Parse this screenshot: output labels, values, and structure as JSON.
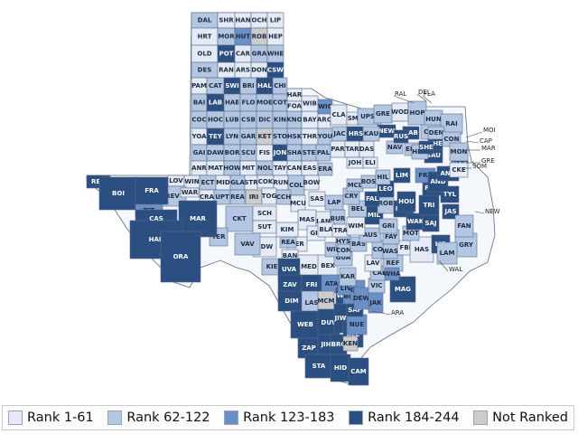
{
  "map": {
    "colors": {
      "rank_1_61": "#e4ebf6",
      "rank_62_122": "#b3c7e3",
      "rank_123_183": "#6b8fc7",
      "rank_184_244": "#2b4f80",
      "not_ranked": "#cccccc"
    },
    "label_colors": {
      "light": "#1e2b40",
      "dark": "#ffffff"
    },
    "counties": [
      {
        "abbr": "DAL",
        "tier": "rank_62_122"
      },
      {
        "abbr": "SHR",
        "tier": "rank_1_61"
      },
      {
        "abbr": "HAN",
        "tier": "rank_1_61"
      },
      {
        "abbr": "OCH",
        "tier": "rank_1_61"
      },
      {
        "abbr": "LIP",
        "tier": "rank_1_61"
      },
      {
        "abbr": "HRT",
        "tier": "rank_1_61"
      },
      {
        "abbr": "MOR",
        "tier": "rank_62_122"
      },
      {
        "abbr": "HUT",
        "tier": "rank_123_183"
      },
      {
        "abbr": "ROB",
        "tier": "not_ranked"
      },
      {
        "abbr": "HEP",
        "tier": "rank_1_61"
      },
      {
        "abbr": "OLD",
        "tier": "rank_1_61"
      },
      {
        "abbr": "POT",
        "tier": "rank_184_244"
      },
      {
        "abbr": "CAR",
        "tier": "rank_1_61"
      },
      {
        "abbr": "GRA",
        "tier": "rank_62_122"
      },
      {
        "abbr": "WHE",
        "tier": "rank_62_122"
      },
      {
        "abbr": "DES",
        "tier": "rank_62_122"
      },
      {
        "abbr": "RAN",
        "tier": "rank_1_61"
      },
      {
        "abbr": "ARS",
        "tier": "rank_1_61"
      },
      {
        "abbr": "DON",
        "tier": "rank_1_61"
      },
      {
        "abbr": "CSW",
        "tier": "rank_184_244"
      },
      {
        "abbr": "PAM",
        "tier": "rank_1_61"
      },
      {
        "abbr": "CAT",
        "tier": "rank_62_122"
      },
      {
        "abbr": "SWI",
        "tier": "rank_184_244"
      },
      {
        "abbr": "BRI",
        "tier": "rank_62_122"
      },
      {
        "abbr": "HAL",
        "tier": "rank_184_244"
      },
      {
        "abbr": "CHI",
        "tier": "rank_62_122"
      },
      {
        "abbr": "BAI",
        "tier": "rank_62_122"
      },
      {
        "abbr": "LAB",
        "tier": "rank_184_244"
      },
      {
        "abbr": "HAE",
        "tier": "rank_62_122"
      },
      {
        "abbr": "FLO",
        "tier": "rank_62_122"
      },
      {
        "abbr": "MOE",
        "tier": "rank_62_122"
      },
      {
        "abbr": "COT",
        "tier": "rank_62_122"
      },
      {
        "abbr": "HAR",
        "tier": "rank_1_61"
      },
      {
        "abbr": "COC",
        "tier": "rank_62_122"
      },
      {
        "abbr": "HOC",
        "tier": "rank_62_122"
      },
      {
        "abbr": "LUB",
        "tier": "rank_62_122"
      },
      {
        "abbr": "CSB",
        "tier": "rank_62_122"
      },
      {
        "abbr": "DIC",
        "tier": "rank_62_122"
      },
      {
        "abbr": "KIN",
        "tier": "rank_62_122"
      },
      {
        "abbr": "KNO",
        "tier": "rank_62_122"
      },
      {
        "abbr": "BAY",
        "tier": "rank_1_61"
      },
      {
        "abbr": "ARC",
        "tier": "rank_1_61"
      },
      {
        "abbr": "FOA",
        "tier": "rank_1_61"
      },
      {
        "abbr": "WIB",
        "tier": "rank_1_61"
      },
      {
        "abbr": "WIC",
        "tier": "rank_123_183"
      },
      {
        "abbr": "YOA",
        "tier": "rank_1_61"
      },
      {
        "abbr": "TEY",
        "tier": "rank_184_244"
      },
      {
        "abbr": "LYN",
        "tier": "rank_62_122"
      },
      {
        "abbr": "GAR",
        "tier": "rank_62_122"
      },
      {
        "abbr": "KET",
        "tier": "not_ranked"
      },
      {
        "abbr": "STO",
        "tier": "rank_62_122"
      },
      {
        "abbr": "HSK",
        "tier": "rank_62_122"
      },
      {
        "abbr": "THR",
        "tier": "rank_1_61"
      },
      {
        "abbr": "YOU",
        "tier": "rank_62_122"
      },
      {
        "abbr": "JAC",
        "tier": "rank_62_122"
      },
      {
        "abbr": "CLA",
        "tier": "rank_1_61"
      },
      {
        "abbr": "GAI",
        "tier": "rank_62_122"
      },
      {
        "abbr": "DAW",
        "tier": "rank_62_122"
      },
      {
        "abbr": "BOR",
        "tier": "rank_62_122"
      },
      {
        "abbr": "SCU",
        "tier": "rank_62_122"
      },
      {
        "abbr": "FIS",
        "tier": "rank_1_61"
      },
      {
        "abbr": "JON",
        "tier": "rank_184_244"
      },
      {
        "abbr": "SHA",
        "tier": "rank_62_122"
      },
      {
        "abbr": "STE",
        "tier": "rank_62_122"
      },
      {
        "abbr": "PAL",
        "tier": "rank_62_122"
      },
      {
        "abbr": "PAR",
        "tier": "rank_1_61"
      },
      {
        "abbr": "TAR",
        "tier": "rank_1_61"
      },
      {
        "abbr": "DAS",
        "tier": "rank_1_61"
      },
      {
        "abbr": "ANR",
        "tier": "rank_1_61"
      },
      {
        "abbr": "MAT",
        "tier": "rank_1_61"
      },
      {
        "abbr": "HOW",
        "tier": "rank_62_122"
      },
      {
        "abbr": "MIT",
        "tier": "rank_1_61"
      },
      {
        "abbr": "NOL",
        "tier": "rank_62_122"
      },
      {
        "abbr": "TAY",
        "tier": "rank_1_61"
      },
      {
        "abbr": "CAN",
        "tier": "rank_1_61"
      },
      {
        "abbr": "EAS",
        "tier": "rank_1_61"
      },
      {
        "abbr": "ERA",
        "tier": "rank_62_122"
      },
      {
        "abbr": "JOH",
        "tier": "rank_1_61"
      },
      {
        "abbr": "ELI",
        "tier": "rank_1_61"
      },
      {
        "abbr": "LOV",
        "tier": "rank_1_61"
      },
      {
        "abbr": "WIN",
        "tier": "rank_1_61"
      },
      {
        "abbr": "ECT",
        "tier": "rank_62_122"
      },
      {
        "abbr": "MID",
        "tier": "rank_1_61"
      },
      {
        "abbr": "GLA",
        "tier": "rank_62_122"
      },
      {
        "abbr": "STR",
        "tier": "rank_1_61"
      },
      {
        "abbr": "COK",
        "tier": "rank_1_61"
      },
      {
        "abbr": "RUN",
        "tier": "rank_1_61"
      },
      {
        "abbr": "COL",
        "tier": "rank_62_122"
      },
      {
        "abbr": "BOW",
        "tier": "rank_1_61"
      },
      {
        "abbr": "REV",
        "tier": "rank_62_122"
      },
      {
        "abbr": "WAR",
        "tier": "rank_1_61"
      },
      {
        "abbr": "CRA",
        "tier": "rank_1_61"
      },
      {
        "abbr": "UPT",
        "tier": "rank_62_122"
      },
      {
        "abbr": "REA",
        "tier": "rank_62_122"
      },
      {
        "abbr": "IRI",
        "tier": "not_ranked"
      },
      {
        "abbr": "TOG",
        "tier": "rank_1_61"
      },
      {
        "abbr": "CCH",
        "tier": "rank_62_122"
      },
      {
        "abbr": "MCU",
        "tier": "rank_1_61"
      },
      {
        "abbr": "SAS",
        "tier": "rank_1_61"
      },
      {
        "abbr": "CKT",
        "tier": "rank_62_122"
      },
      {
        "abbr": "SCH",
        "tier": "rank_1_61"
      },
      {
        "abbr": "SUT",
        "tier": "rank_1_61"
      },
      {
        "abbr": "MAS",
        "tier": "rank_1_61"
      },
      {
        "abbr": "LAN",
        "tier": "rank_1_61"
      },
      {
        "abbr": "BUR",
        "tier": "rank_62_122"
      },
      {
        "abbr": "KIM",
        "tier": "rank_1_61"
      },
      {
        "abbr": "EDW",
        "tier": "rank_1_61"
      },
      {
        "abbr": "KER",
        "tier": "rank_1_61"
      },
      {
        "abbr": "GIE",
        "tier": "rank_1_61"
      },
      {
        "abbr": "TER",
        "tier": "rank_62_122"
      },
      {
        "abbr": "VAV",
        "tier": "rank_62_122"
      },
      {
        "abbr": "KIE",
        "tier": "rank_62_122"
      },
      {
        "abbr": "REA2",
        "tier": "rank_62_122"
      },
      {
        "abbr": "BAN",
        "tier": "rank_1_61"
      },
      {
        "abbr": "MED",
        "tier": "rank_1_61"
      },
      {
        "abbr": "BEX",
        "tier": "rank_1_61"
      },
      {
        "abbr": "MAV",
        "tier": "rank_184_244"
      },
      {
        "abbr": "UVA",
        "tier": "rank_184_244"
      },
      {
        "abbr": "ZAV",
        "tier": "rank_184_244"
      },
      {
        "abbr": "FRI",
        "tier": "rank_184_244"
      },
      {
        "abbr": "DIM",
        "tier": "rank_184_244"
      },
      {
        "abbr": "LAS",
        "tier": "rank_62_122"
      },
      {
        "abbr": "ATA",
        "tier": "rank_123_183"
      },
      {
        "abbr": "MCM",
        "tier": "not_ranked"
      },
      {
        "abbr": "WEB",
        "tier": "rank_184_244"
      },
      {
        "abbr": "DUV",
        "tier": "rank_184_244"
      },
      {
        "abbr": "JIW",
        "tier": "rank_184_244"
      },
      {
        "abbr": "ZAP",
        "tier": "rank_184_244"
      },
      {
        "abbr": "JIH",
        "tier": "rank_184_244"
      },
      {
        "abbr": "BRO",
        "tier": "rank_184_244"
      },
      {
        "abbr": "KLE",
        "tier": "rank_184_244"
      },
      {
        "abbr": "KEN",
        "tier": "not_ranked"
      },
      {
        "abbr": "STA",
        "tier": "rank_184_244"
      },
      {
        "abbr": "HID",
        "tier": "rank_184_244"
      },
      {
        "abbr": "WIL",
        "tier": "rank_184_244"
      },
      {
        "abbr": "CAM",
        "tier": "rank_184_244"
      },
      {
        "abbr": "NUE",
        "tier": "rank_123_183"
      },
      {
        "abbr": "SAP",
        "tier": "rank_184_244"
      },
      {
        "abbr": "BEE",
        "tier": "rank_123_183"
      },
      {
        "abbr": "LIV",
        "tier": "rank_123_183"
      },
      {
        "abbr": "GOL",
        "tier": "rank_123_183"
      },
      {
        "abbr": "KAR",
        "tier": "rank_62_122"
      },
      {
        "abbr": "DEW",
        "tier": "rank_123_183"
      },
      {
        "abbr": "VIC",
        "tier": "rank_62_122"
      },
      {
        "abbr": "JAK",
        "tier": "rank_123_183"
      },
      {
        "abbr": "MAG",
        "tier": "rank_184_244"
      },
      {
        "abbr": "CAL",
        "tier": "rank_62_122"
      },
      {
        "abbr": "REF",
        "tier": "rank_62_122"
      },
      {
        "abbr": "GUA",
        "tier": "rank_62_122"
      },
      {
        "abbr": "WIS",
        "tier": "rank_62_122"
      },
      {
        "abbr": "LAV",
        "tier": "rank_1_61"
      },
      {
        "abbr": "COR",
        "tier": "rank_62_122"
      },
      {
        "abbr": "FBE",
        "tier": "rank_1_61"
      },
      {
        "abbr": "WHA",
        "tier": "rank_123_183"
      },
      {
        "abbr": "HAS",
        "tier": "rank_1_61"
      },
      {
        "abbr": "HYS",
        "tier": "rank_62_122"
      },
      {
        "abbr": "COM",
        "tier": "rank_62_122"
      },
      {
        "abbr": "BAS",
        "tier": "rank_62_122"
      },
      {
        "abbr": "FAY",
        "tier": "rank_62_122"
      },
      {
        "abbr": "WAS",
        "tier": "rank_62_122"
      },
      {
        "abbr": "AUS",
        "tier": "rank_62_122"
      },
      {
        "abbr": "MOT",
        "tier": "rank_62_122"
      },
      {
        "abbr": "BLA",
        "tier": "rank_1_61"
      },
      {
        "abbr": "TRA",
        "tier": "rank_1_61"
      },
      {
        "abbr": "WIM",
        "tier": "rank_1_61"
      },
      {
        "abbr": "MIL",
        "tier": "rank_184_244"
      },
      {
        "abbr": "ROB2",
        "tier": "rank_62_122"
      },
      {
        "abbr": "MAD",
        "tier": "rank_184_244"
      },
      {
        "abbr": "GRI",
        "tier": "rank_62_122"
      },
      {
        "abbr": "WAK",
        "tier": "rank_184_244"
      },
      {
        "abbr": "SAJ",
        "tier": "rank_184_244"
      },
      {
        "abbr": "LIB",
        "tier": "rank_184_244"
      },
      {
        "abbr": "LAP",
        "tier": "rank_62_122"
      },
      {
        "abbr": "BEL",
        "tier": "rank_62_122"
      },
      {
        "abbr": "CRY",
        "tier": "rank_62_122"
      },
      {
        "abbr": "FAL",
        "tier": "rank_184_244"
      },
      {
        "abbr": "LEO",
        "tier": "rank_184_244"
      },
      {
        "abbr": "HOU",
        "tier": "rank_184_244"
      },
      {
        "abbr": "TRI",
        "tier": "rank_184_244"
      },
      {
        "abbr": "POL",
        "tier": "rank_184_244"
      },
      {
        "abbr": "TYL",
        "tier": "rank_184_244"
      },
      {
        "abbr": "JAS",
        "tier": "rank_184_244"
      },
      {
        "abbr": "MCL",
        "tier": "rank_62_122"
      },
      {
        "abbr": "BOS",
        "tier": "rank_62_122"
      },
      {
        "abbr": "HIL",
        "tier": "rank_62_122"
      },
      {
        "abbr": "LIM",
        "tier": "rank_184_244"
      },
      {
        "abbr": "FRS",
        "tier": "rank_123_183"
      },
      {
        "abbr": "AND",
        "tier": "rank_184_244"
      },
      {
        "abbr": "ANG",
        "tier": "rank_184_244"
      },
      {
        "abbr": "NAC",
        "tier": "rank_184_244"
      },
      {
        "abbr": "SAU",
        "tier": "rank_184_244"
      },
      {
        "abbr": "NEW",
        "tier": "rank_184_244"
      },
      {
        "abbr": "NAV",
        "tier": "rank_62_122"
      },
      {
        "abbr": "ELL",
        "tier": "rank_62_122"
      },
      {
        "abbr": "HND",
        "tier": "rank_62_122"
      },
      {
        "abbr": "CHE",
        "tier": "rank_184_244"
      },
      {
        "abbr": "SHE",
        "tier": "rank_184_244"
      },
      {
        "abbr": "SAB",
        "tier": "rank_184_244"
      },
      {
        "abbr": "RUS",
        "tier": "rank_184_244"
      },
      {
        "abbr": "PAN",
        "tier": "rank_184_244"
      },
      {
        "abbr": "HRS",
        "tier": "rank_184_244"
      },
      {
        "abbr": "KAU",
        "tier": "rank_62_122"
      },
      {
        "abbr": "VAZ",
        "tier": "rank_62_122"
      },
      {
        "abbr": "SMI",
        "tier": "rank_1_61"
      },
      {
        "abbr": "UPS",
        "tier": "rank_62_122"
      },
      {
        "abbr": "GRE",
        "tier": "rank_62_122"
      },
      {
        "abbr": "WOD",
        "tier": "rank_1_61"
      },
      {
        "abbr": "HOP",
        "tier": "rank_62_122"
      },
      {
        "abbr": "HUN",
        "tier": "rank_62_122"
      },
      {
        "abbr": "RAI",
        "tier": "rank_62_122"
      },
      {
        "abbr": "COL2",
        "tier": "rank_62_122"
      },
      {
        "abbr": "DEN",
        "tier": "rank_62_122"
      },
      {
        "abbr": "CON",
        "tier": "rank_62_122"
      },
      {
        "abbr": "MON",
        "tier": "rank_62_122"
      },
      {
        "abbr": "CKE",
        "tier": "rank_1_61"
      },
      {
        "abbr": "GRY",
        "tier": "rank_62_122"
      },
      {
        "abbr": "FAN",
        "tier": "rank_62_122"
      },
      {
        "abbr": "LAM",
        "tier": "rank_62_122"
      },
      {
        "abbr": "RED",
        "tier": "rank_184_244"
      },
      {
        "abbr": "BOI",
        "tier": "rank_184_244"
      },
      {
        "abbr": "FRA",
        "tier": "rank_184_244"
      },
      {
        "abbr": "TIT",
        "tier": "rank_123_183"
      },
      {
        "abbr": "CAS",
        "tier": "rank_184_244"
      },
      {
        "abbr": "MAR",
        "tier": "rank_184_244"
      },
      {
        "abbr": "HAR2",
        "tier": "rank_184_244"
      },
      {
        "abbr": "ORA",
        "tier": "rank_184_244"
      },
      {
        "abbr": "JEF",
        "tier": "rank_184_244"
      },
      {
        "abbr": "CHA",
        "tier": "rank_184_244"
      },
      {
        "abbr": "ELP",
        "tier": "rank_184_244"
      },
      {
        "abbr": "HUD",
        "tier": "rank_184_244"
      },
      {
        "abbr": "CUB",
        "tier": "rank_184_244"
      },
      {
        "abbr": "LOV2",
        "tier": "rank_184_244"
      },
      {
        "abbr": "JED",
        "tier": "rank_1_61"
      },
      {
        "abbr": "PEC",
        "tier": "rank_184_244"
      },
      {
        "abbr": "PRE",
        "tier": "rank_184_244"
      },
      {
        "abbr": "BRE",
        "tier": "rank_1_61"
      }
    ],
    "callouts": [
      "RAL",
      "DEL",
      "FLA",
      "MOI",
      "CAP",
      "MAR",
      "GRE",
      "SOM",
      "NEW",
      "WAL",
      "ARA"
    ]
  },
  "legend": {
    "items": [
      {
        "key": "rank_1_61",
        "label": "Rank 1-61"
      },
      {
        "key": "rank_62_122",
        "label": "Rank 62-122"
      },
      {
        "key": "rank_123_183",
        "label": "Rank 123-183"
      },
      {
        "key": "rank_184_244",
        "label": "Rank 184-244"
      },
      {
        "key": "not_ranked",
        "label": "Not Ranked"
      }
    ]
  }
}
